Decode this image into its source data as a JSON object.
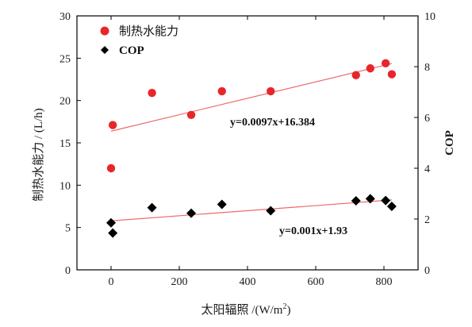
{
  "chart_data": {
    "type": "scatter",
    "xlabel": "太阳辐照 /(W/m",
    "xlabel_sup": "2",
    "xlabel_close": ")",
    "ylabel_left": "制热水能力 / (L/h)",
    "ylabel_right": "COP",
    "xlim": [
      -100,
      900
    ],
    "ylim_left": [
      0,
      30
    ],
    "ylim_right": [
      0,
      10
    ],
    "xticks": [
      0,
      200,
      400,
      600,
      800
    ],
    "yticks_left": [
      0,
      5,
      10,
      15,
      20,
      25,
      30
    ],
    "yticks_right": [
      0,
      2,
      4,
      6,
      8,
      10
    ],
    "grid": false,
    "legend_position": "top-left",
    "colors": {
      "heating": "#e8262a",
      "cop": "#000000",
      "fit_line": "#ee6a6a"
    },
    "series": [
      {
        "name": "制热水能力",
        "axis": "left",
        "marker": "circle",
        "x": [
          0,
          5,
          120,
          235,
          325,
          468,
          718,
          760,
          805,
          823
        ],
        "y": [
          12.0,
          17.1,
          20.9,
          18.3,
          21.1,
          21.1,
          23.0,
          23.8,
          24.4,
          23.1
        ],
        "fit": {
          "slope": 0.0097,
          "intercept": 16.384,
          "x_range": [
            0,
            823
          ]
        },
        "equation": "y=0.0097x+16.384"
      },
      {
        "name": "COP",
        "axis": "right",
        "marker": "diamond",
        "x": [
          0,
          5,
          120,
          235,
          325,
          468,
          718,
          760,
          805,
          823
        ],
        "y": [
          1.85,
          1.45,
          2.45,
          2.23,
          2.58,
          2.33,
          2.72,
          2.8,
          2.73,
          2.5
        ],
        "fit": {
          "slope": 0.001,
          "intercept": 1.93,
          "x_range": [
            0,
            823
          ]
        },
        "equation": "y=0.001x+1.93"
      }
    ]
  }
}
